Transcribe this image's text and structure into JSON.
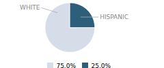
{
  "chart_data": {
    "type": "pie",
    "categories": [
      "WHITE",
      "HISPANIC"
    ],
    "values": [
      75.0,
      25.0
    ],
    "value_labels": [
      "75.0%",
      "25.0%"
    ],
    "colors": [
      "#d6dde8",
      "#2e5f7a"
    ],
    "legend": "bottom"
  }
}
